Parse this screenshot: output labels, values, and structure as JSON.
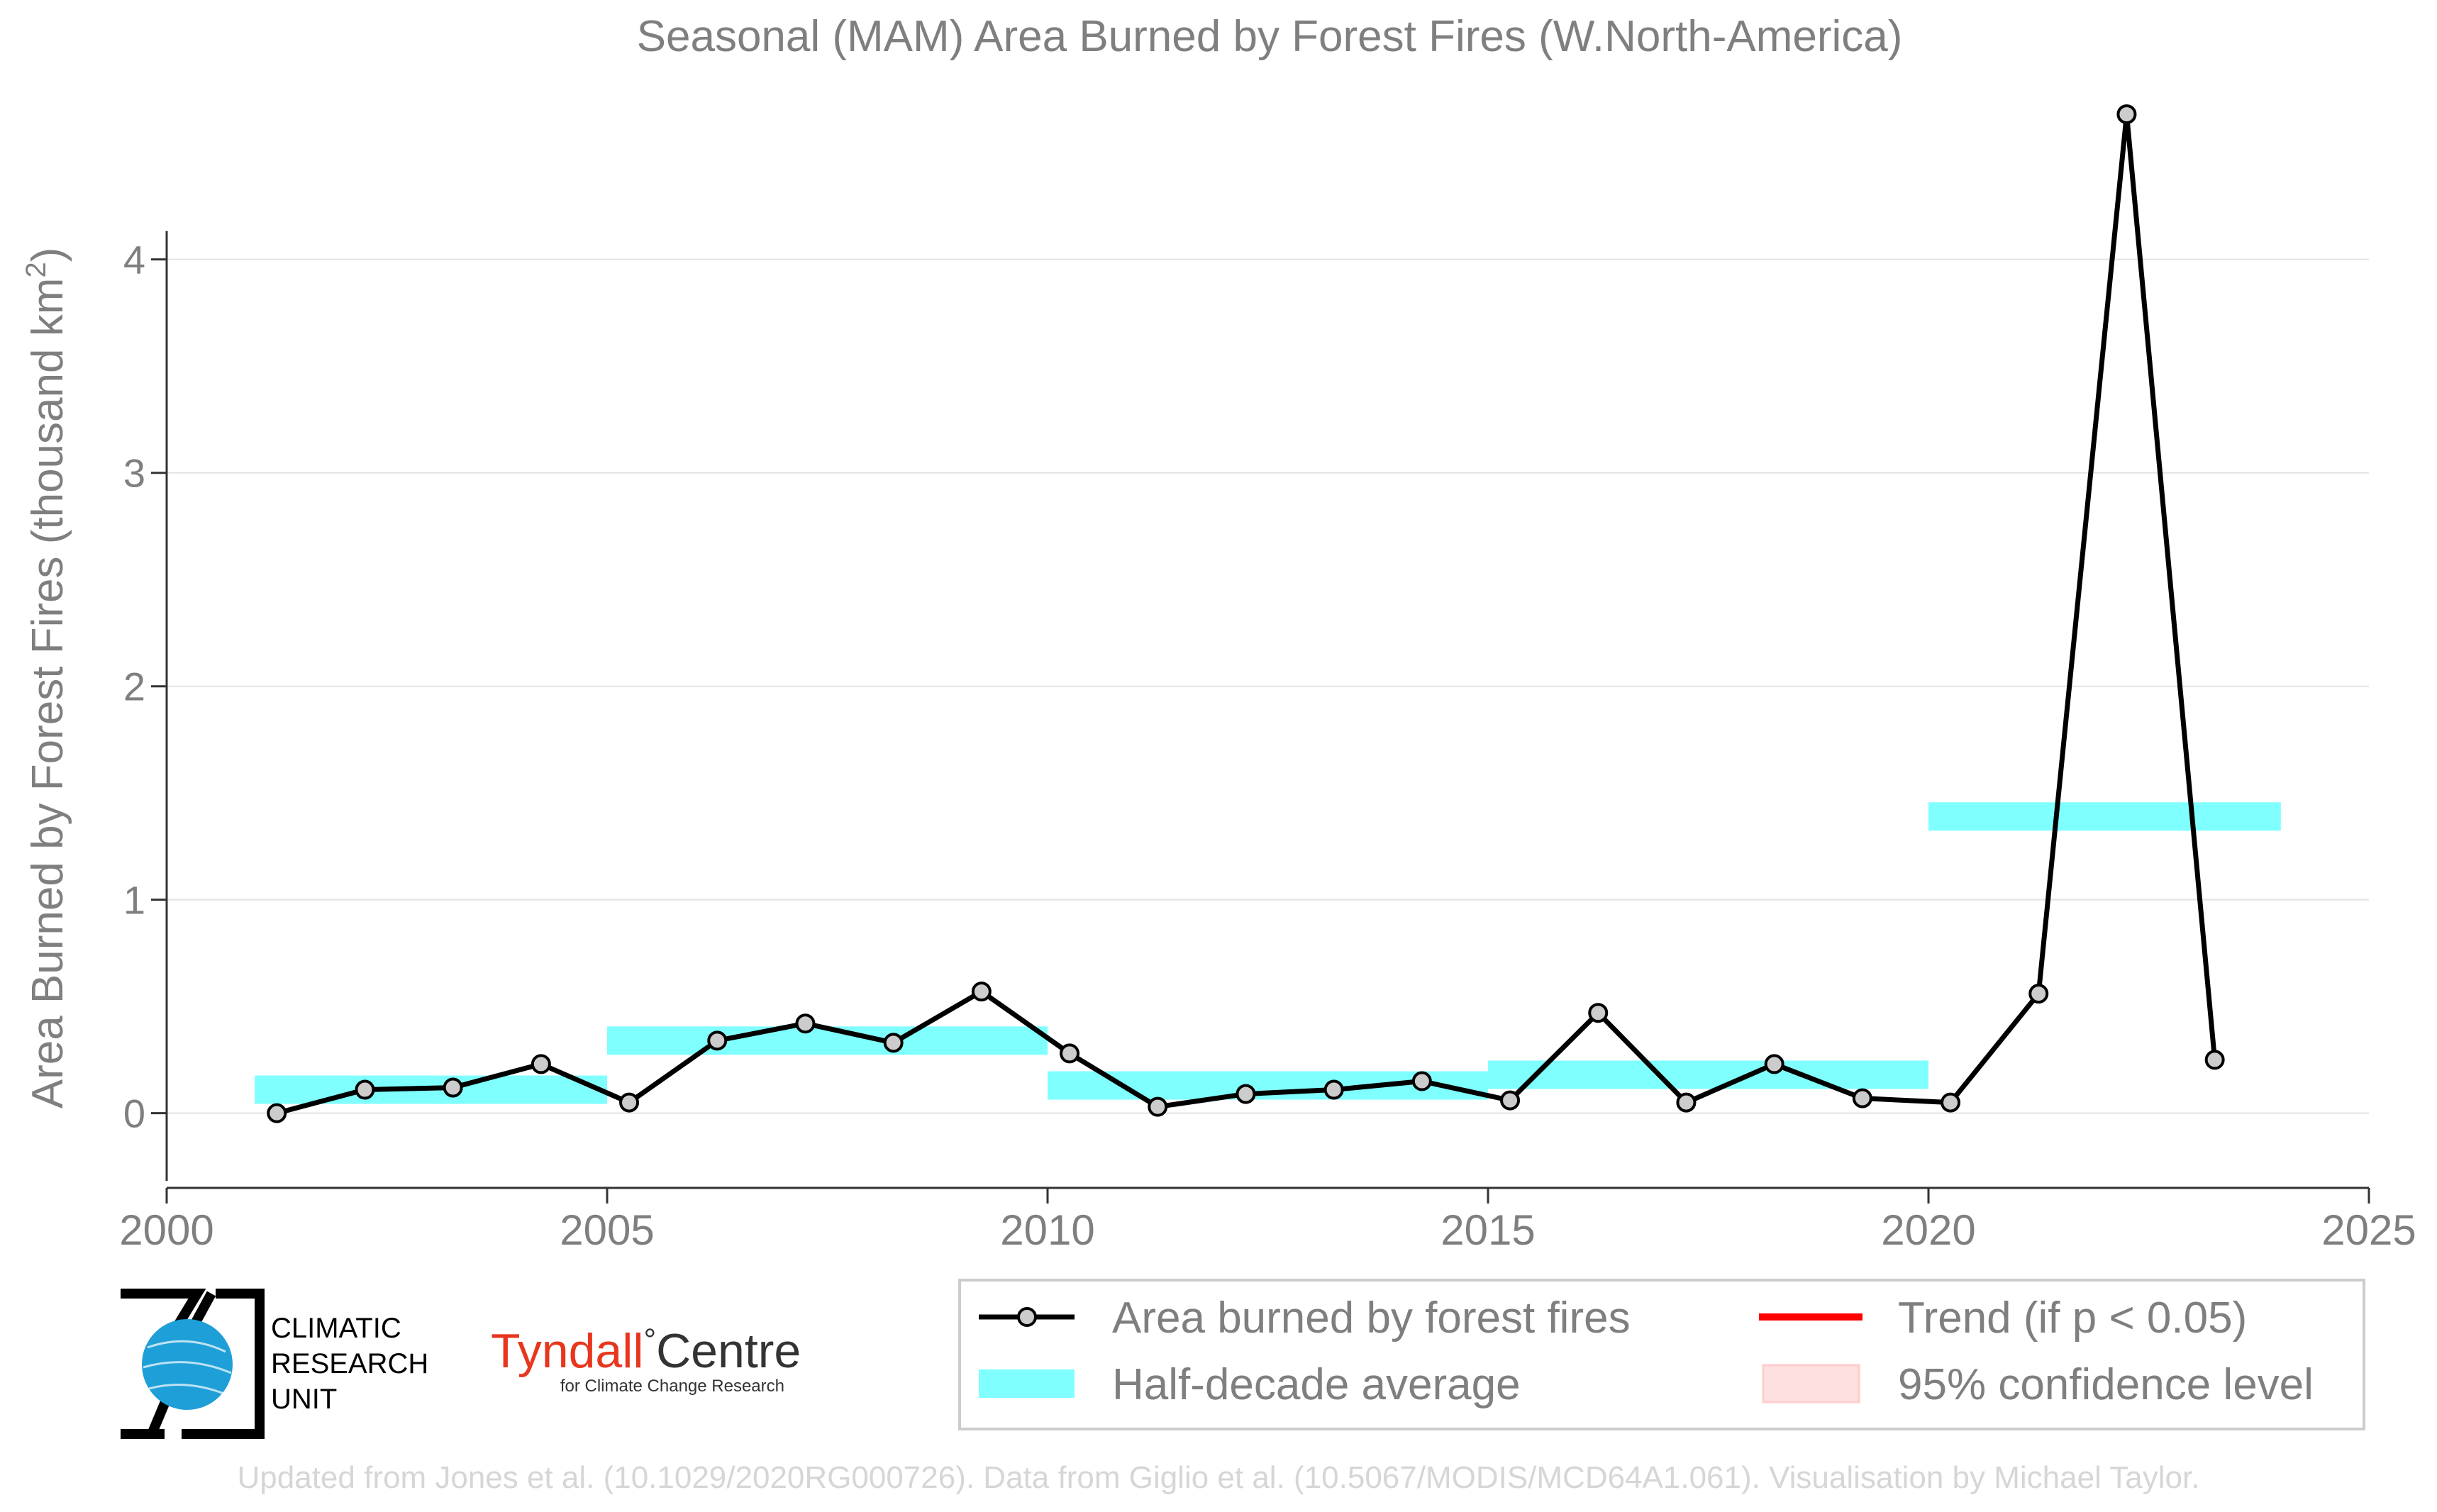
{
  "chart_data": {
    "type": "line",
    "title": "Seasonal (MAM) Area Burned by Forest Fires (W.North-America)",
    "ylabel_prefix": "Area Burned by Forest Fires (thousand km",
    "ylabel_sup": "2",
    "ylabel_suffix": ")",
    "xlabel": "",
    "xlim": [
      2000,
      2025
    ],
    "ylim": [
      -0.35,
      4.75
    ],
    "x_ticks": [
      2000,
      2005,
      2010,
      2015,
      2020,
      2025
    ],
    "y_ticks": [
      0,
      1,
      2,
      3,
      4
    ],
    "grid": true,
    "series": [
      {
        "name": "Area burned by forest fires",
        "x": [
          2001.25,
          2002.25,
          2003.25,
          2004.25,
          2005.25,
          2006.25,
          2007.25,
          2008.25,
          2009.25,
          2010.25,
          2011.25,
          2012.25,
          2013.25,
          2014.25,
          2015.25,
          2016.25,
          2017.25,
          2018.25,
          2019.25,
          2020.25,
          2021.25,
          2022.25,
          2023.25
        ],
        "values": [
          0.0,
          0.11,
          0.12,
          0.23,
          0.05,
          0.34,
          0.42,
          0.33,
          0.57,
          0.28,
          0.03,
          0.09,
          0.11,
          0.15,
          0.06,
          0.47,
          0.05,
          0.23,
          0.07,
          0.05,
          0.56,
          4.68,
          0.25
        ],
        "color": "#000000",
        "marker_fill": "#cccccc"
      }
    ],
    "half_decade_averages": [
      {
        "x_start": 2001,
        "x_end": 2005,
        "value": 0.11
      },
      {
        "x_start": 2005,
        "x_end": 2010,
        "value": 0.34
      },
      {
        "x_start": 2010,
        "x_end": 2015,
        "value": 0.13
      },
      {
        "x_start": 2015,
        "x_end": 2020,
        "value": 0.18
      },
      {
        "x_start": 2020,
        "x_end": 2024,
        "value": 1.39
      }
    ],
    "half_decade_color": "#80ffff",
    "trend_color": "#ff0000",
    "ci_color": "#ffe0e0",
    "legend": {
      "position": "bottom-right",
      "items": [
        {
          "label": "Area burned by forest fires",
          "kind": "line-marker"
        },
        {
          "label": "Trend (if p < 0.05)",
          "kind": "red-line"
        },
        {
          "label": "Half-decade average",
          "kind": "cyan-bar"
        },
        {
          "label": "95% confidence level",
          "kind": "pink-box"
        }
      ]
    }
  },
  "logos": {
    "cru_lines": [
      "CLIMATIC",
      "RESEARCH",
      "UNIT"
    ],
    "tyndall_main": "Tyndall",
    "tyndall_degree": "°",
    "tyndall_centre": "Centre",
    "tyndall_sub": "for Climate Change Research"
  },
  "footer": "Updated from Jones et al. (10.1029/2020RG000726). Data from Giglio et al. (10.5067/MODIS/MCD64A1.061). Visualisation by Michael Taylor."
}
